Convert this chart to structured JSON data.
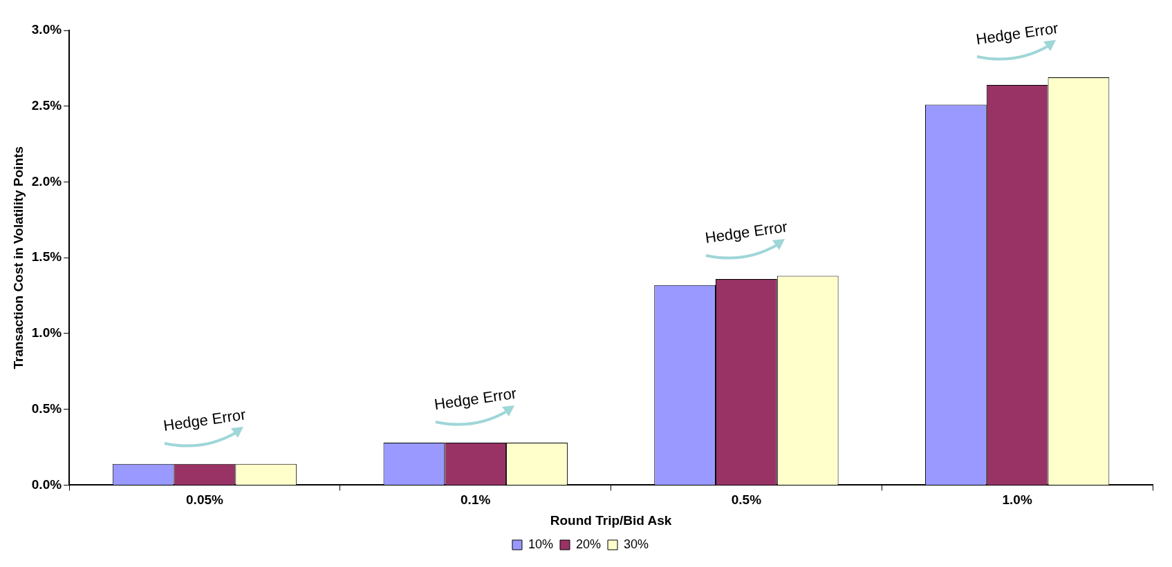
{
  "chart_data": {
    "type": "bar",
    "xlabel": "Round Trip/Bid Ask",
    "ylabel": "Transaction Cost in Volatility Points",
    "categories": [
      "0.05%",
      "0.1%",
      "0.5%",
      "1.0%"
    ],
    "series": [
      {
        "name": "10%",
        "color": "#9999ff",
        "values": [
          0.14,
          0.28,
          1.32,
          2.51
        ]
      },
      {
        "name": "20%",
        "color": "#993366",
        "values": [
          0.14,
          0.28,
          1.36,
          2.64
        ]
      },
      {
        "name": "30%",
        "color": "#ffffcc",
        "values": [
          0.14,
          0.28,
          1.38,
          2.69
        ]
      }
    ],
    "ylim": [
      0,
      3
    ],
    "yticks": [
      {
        "value": 0,
        "label": "0.0%"
      },
      {
        "value": 0.5,
        "label": "0.5%"
      },
      {
        "value": 1,
        "label": "1.0%"
      },
      {
        "value": 1.5,
        "label": "1.5%"
      },
      {
        "value": 2,
        "label": "2.0%"
      },
      {
        "value": 2.5,
        "label": "2.5%"
      },
      {
        "value": 3,
        "label": "3.0%"
      }
    ],
    "grid": false,
    "legend": "bottom",
    "annotations": [
      "Hedge Error",
      "Hedge Error",
      "Hedge Error",
      "Hedge Error"
    ]
  }
}
